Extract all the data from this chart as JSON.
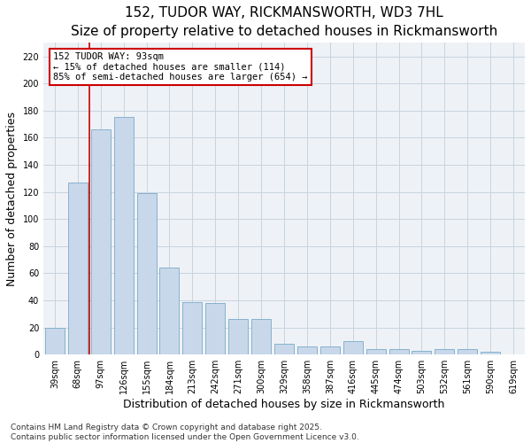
{
  "title": "152, TUDOR WAY, RICKMANSWORTH, WD3 7HL",
  "subtitle": "Size of property relative to detached houses in Rickmansworth",
  "xlabel": "Distribution of detached houses by size in Rickmansworth",
  "ylabel": "Number of detached properties",
  "categories": [
    "39sqm",
    "68sqm",
    "97sqm",
    "126sqm",
    "155sqm",
    "184sqm",
    "213sqm",
    "242sqm",
    "271sqm",
    "300sqm",
    "329sqm",
    "358sqm",
    "387sqm",
    "416sqm",
    "445sqm",
    "474sqm",
    "503sqm",
    "532sqm",
    "561sqm",
    "590sqm",
    "619sqm"
  ],
  "values": [
    20,
    127,
    166,
    175,
    119,
    64,
    39,
    38,
    26,
    26,
    8,
    6,
    6,
    10,
    4,
    4,
    3,
    4,
    4,
    2,
    0
  ],
  "bar_color": "#c8d8ea",
  "bar_edgecolor": "#7aaac8",
  "vline_index": 1.5,
  "vline_color": "#cc0000",
  "annotation_text": "152 TUDOR WAY: 93sqm\n← 15% of detached houses are smaller (114)\n85% of semi-detached houses are larger (654) →",
  "annotation_box_edgecolor": "#cc0000",
  "ylim": [
    0,
    230
  ],
  "yticks": [
    0,
    20,
    40,
    60,
    80,
    100,
    120,
    140,
    160,
    180,
    200,
    220
  ],
  "grid_color": "#c8d4de",
  "background_color": "#eef2f7",
  "footnote": "Contains HM Land Registry data © Crown copyright and database right 2025.\nContains public sector information licensed under the Open Government Licence v3.0.",
  "title_fontsize": 11,
  "xlabel_fontsize": 9,
  "ylabel_fontsize": 9,
  "tick_fontsize": 7,
  "annotation_fontsize": 7.5,
  "footnote_fontsize": 6.5
}
